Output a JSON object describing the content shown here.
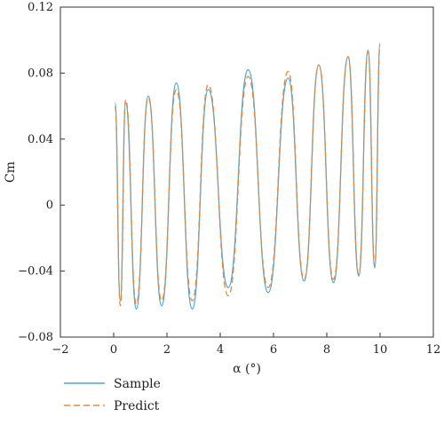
{
  "chart_data": {
    "type": "line",
    "title": "",
    "xlabel": "α (°)",
    "ylabel": "Cm",
    "xlim": [
      -2,
      12
    ],
    "ylim": [
      -0.08,
      0.12
    ],
    "x_ticks": [
      -2,
      0,
      2,
      4,
      6,
      8,
      10,
      12
    ],
    "x_tick_labels": [
      "−2",
      "0",
      "2",
      "4",
      "6",
      "8",
      "10",
      "12"
    ],
    "y_ticks": [
      -0.08,
      -0.04,
      0,
      0.04,
      0.08,
      0.12
    ],
    "y_tick_labels": [
      "−0.08",
      "−0.04",
      "0",
      "0.04",
      "0.08",
      "0.12"
    ],
    "grid": false,
    "legend_position": "bottom-left",
    "series": [
      {
        "name": "Sample",
        "color": "#4aa7d8",
        "dash": "solid",
        "x": [
          0.05,
          0.25,
          0.45,
          0.85,
          1.3,
          1.8,
          2.35,
          2.95,
          3.55,
          4.3,
          5.05,
          5.8,
          6.55,
          7.15,
          7.7,
          8.25,
          8.8,
          9.2,
          9.55,
          9.8,
          10.0
        ],
        "y": [
          0.062,
          -0.058,
          0.062,
          -0.063,
          0.066,
          -0.061,
          0.074,
          -0.063,
          0.07,
          -0.05,
          0.082,
          -0.053,
          0.077,
          -0.046,
          0.085,
          -0.047,
          0.09,
          -0.043,
          0.094,
          -0.038,
          0.098
        ]
      },
      {
        "name": "Predict",
        "color": "#e8883a",
        "dash": "dashed",
        "x": [
          0.05,
          0.25,
          0.45,
          0.85,
          1.3,
          1.8,
          2.35,
          2.95,
          3.55,
          4.3,
          5.05,
          5.8,
          6.55,
          7.15,
          7.7,
          8.25,
          8.8,
          9.2,
          9.55,
          9.8,
          10.0
        ],
        "y": [
          0.06,
          -0.061,
          0.064,
          -0.06,
          0.065,
          -0.058,
          0.07,
          -0.058,
          0.073,
          -0.055,
          0.078,
          -0.05,
          0.081,
          -0.045,
          0.085,
          -0.045,
          0.09,
          -0.042,
          0.093,
          -0.037,
          0.097
        ]
      }
    ]
  }
}
